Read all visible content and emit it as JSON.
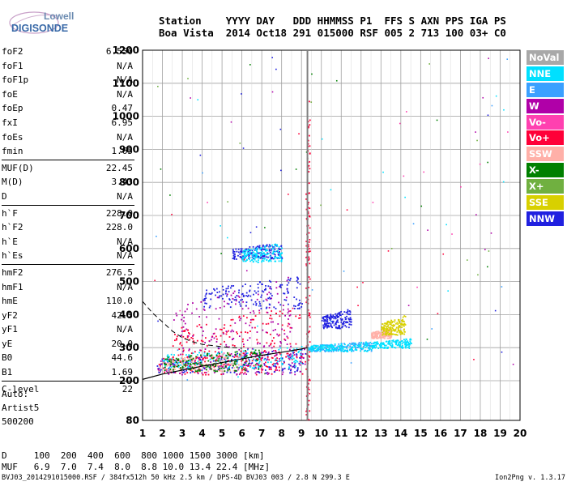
{
  "logo": {
    "line1": "Lowell",
    "line2": "DIGISONDE"
  },
  "header": {
    "labels": "Station    YYYY DAY   DDD HHMMSS P1  FFS S AXN PPS IGA PS",
    "values": "Boa Vista  2014 Oct18 291 015000 RSF 005 2 713 100 03+ C0"
  },
  "params": {
    "group1": [
      {
        "name": "foF2",
        "value": "6.550"
      },
      {
        "name": "foF1",
        "value": "N/A"
      },
      {
        "name": "foF1p",
        "value": "N/A"
      },
      {
        "name": "foE",
        "value": "N/A"
      },
      {
        "name": "foEp",
        "value": "0.47"
      },
      {
        "name": "fxI",
        "value": "6.95"
      },
      {
        "name": "foEs",
        "value": "N/A"
      },
      {
        "name": "fmin",
        "value": "1.65"
      }
    ],
    "group2": [
      {
        "name": "MUF(D)",
        "value": "22.45"
      },
      {
        "name": "M(D)",
        "value": "3.43"
      },
      {
        "name": "D",
        "value": "N/A"
      }
    ],
    "group3": [
      {
        "name": "h`F",
        "value": "228.0"
      },
      {
        "name": "h`F2",
        "value": "228.0"
      },
      {
        "name": "h`E",
        "value": "N/A"
      },
      {
        "name": "h`Es",
        "value": "N/A"
      }
    ],
    "group4": [
      {
        "name": "hmF2",
        "value": "276.5"
      },
      {
        "name": "hmF1",
        "value": "N/A"
      },
      {
        "name": "hmE",
        "value": "110.0"
      },
      {
        "name": "yF2",
        "value": "42.5"
      },
      {
        "name": "yF1",
        "value": "N/A"
      },
      {
        "name": "yE",
        "value": "20.0"
      },
      {
        "name": "B0",
        "value": "44.6"
      },
      {
        "name": "B1",
        "value": "1.69"
      }
    ],
    "group5": [
      {
        "name": "C-level",
        "value": "22"
      }
    ]
  },
  "auto": {
    "line1": "Auto:",
    "line2": "Artist5",
    "line3": "500200"
  },
  "dmuf": {
    "d_row": "D     100  200  400  600  800 1000 1500 3000 [km]",
    "muf_row": "MUF   6.9  7.0  7.4  8.0  8.8 10.0 13.4 22.4 [MHz]"
  },
  "footer": {
    "left": "BVJ03_2014291015000.RSF / 384fx512h 50 kHz 2.5 km / DPS-4D BVJ03 003 / 2.8 N 299.3 E",
    "right": "Ion2Png v. 1.3.17"
  },
  "legend": [
    {
      "label": "NoVal",
      "color": "#a8a8a8"
    },
    {
      "label": "NNE",
      "color": "#00e0ff"
    },
    {
      "label": "E",
      "color": "#3aa0ff"
    },
    {
      "label": "W",
      "color": "#b000a8"
    },
    {
      "label": "Vo-",
      "color": "#ff40b0"
    },
    {
      "label": "Vo+",
      "color": "#ff0038"
    },
    {
      "label": "SSW",
      "color": "#ffb0a8"
    },
    {
      "label": "X-",
      "color": "#008000"
    },
    {
      "label": "X+",
      "color": "#70b040"
    },
    {
      "label": "SSE",
      "color": "#d8d000"
    },
    {
      "label": "NNW",
      "color": "#2020e0"
    }
  ],
  "chart_data": {
    "type": "scatter",
    "title": "",
    "xlabel": "",
    "ylabel": "",
    "xlim": [
      1,
      20
    ],
    "ylim": [
      80,
      1200
    ],
    "x_ticks": [
      1,
      2,
      3,
      4,
      5,
      6,
      7,
      8,
      9,
      10,
      11,
      12,
      13,
      14,
      15,
      16,
      17,
      18,
      19,
      20
    ],
    "y_ticks": [
      80,
      200,
      300,
      400,
      500,
      600,
      700,
      800,
      900,
      1000,
      1100,
      1200
    ],
    "grid": true,
    "legend_position": "right",
    "marker_line_x": 9.3,
    "traces": {
      "o_trace": {
        "name": "O trace fit",
        "points": [
          [
            1,
            204
          ],
          [
            2,
            220
          ],
          [
            3,
            232
          ],
          [
            4,
            244
          ],
          [
            5,
            255
          ],
          [
            6,
            266
          ],
          [
            7,
            277
          ],
          [
            8,
            286
          ],
          [
            9,
            296
          ],
          [
            9.3,
            300
          ]
        ]
      },
      "x_trace": {
        "name": "X trace",
        "points": [
          [
            1,
            440
          ],
          [
            1.5,
            405
          ],
          [
            2,
            378
          ],
          [
            2.5,
            350
          ],
          [
            3,
            330
          ],
          [
            3.5,
            318
          ],
          [
            4,
            310
          ],
          [
            5,
            303
          ],
          [
            6,
            298
          ]
        ]
      }
    },
    "clusters": [
      {
        "series": "Vo+",
        "x": [
          1.7,
          9.2
        ],
        "y": [
          220,
          300
        ]
      },
      {
        "series": "W",
        "x": [
          1.7,
          9.2
        ],
        "y": [
          220,
          300
        ]
      },
      {
        "series": "NNW",
        "x": [
          1.7,
          9.2
        ],
        "y": [
          225,
          300
        ]
      },
      {
        "series": "NNE",
        "x": [
          2,
          9.2
        ],
        "y": [
          240,
          310
        ]
      },
      {
        "series": "SSW",
        "x": [
          1.8,
          6
        ],
        "y": [
          230,
          290
        ]
      },
      {
        "series": "X-",
        "x": [
          2,
          7
        ],
        "y": [
          230,
          300
        ]
      },
      {
        "series": "Vo+",
        "x": [
          2.5,
          9.0
        ],
        "y": [
          260,
          430
        ]
      },
      {
        "series": "W",
        "x": [
          2.5,
          8.5
        ],
        "y": [
          280,
          520
        ]
      },
      {
        "series": "NNW",
        "x": [
          4,
          9
        ],
        "y": [
          420,
          520
        ]
      },
      {
        "series": "NNW",
        "x": [
          10,
          11.5
        ],
        "y": [
          360,
          420
        ]
      },
      {
        "series": "E",
        "x": [
          9.3,
          12.5
        ],
        "y": [
          290,
          320
        ]
      },
      {
        "series": "NNE",
        "x": [
          9.3,
          12.5
        ],
        "y": [
          290,
          320
        ]
      },
      {
        "series": "SSW",
        "x": [
          12.5,
          13.5
        ],
        "y": [
          330,
          360
        ]
      },
      {
        "series": "SSE",
        "x": [
          13,
          14.2
        ],
        "y": [
          340,
          400
        ]
      },
      {
        "series": "NNE",
        "x": [
          12.5,
          14.5
        ],
        "y": [
          300,
          330
        ]
      },
      {
        "series": "Vo+",
        "x": [
          9.2,
          9.4
        ],
        "y": [
          80,
          1200
        ]
      },
      {
        "series": "NNW",
        "x": [
          5.5,
          8
        ],
        "y": [
          570,
          620
        ]
      },
      {
        "series": "NNE",
        "x": [
          6,
          8
        ],
        "y": [
          560,
          620
        ]
      }
    ]
  }
}
